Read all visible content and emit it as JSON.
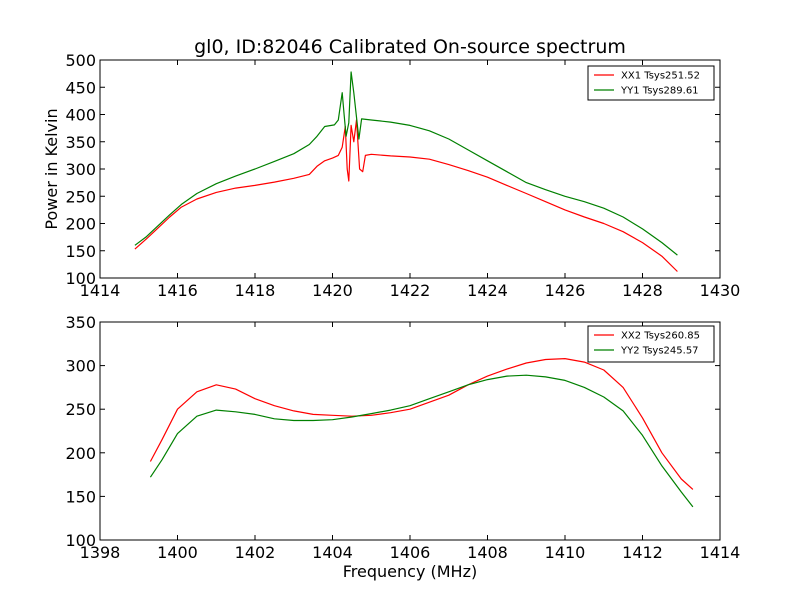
{
  "chart_data": [
    {
      "type": "line",
      "title": "gl0, ID:82046 Calibrated On-source spectrum",
      "xlabel": "",
      "ylabel": "Power in Kelvin",
      "xlim": [
        1414,
        1430
      ],
      "ylim": [
        100,
        500
      ],
      "xticks": [
        "1414",
        "1416",
        "1418",
        "1420",
        "1422",
        "1424",
        "1426",
        "1428",
        "1430"
      ],
      "yticks": [
        "100",
        "150",
        "200",
        "250",
        "300",
        "350",
        "400",
        "450",
        "500"
      ],
      "grid": false,
      "legend_position": "top-right",
      "series": [
        {
          "name": "XX1 Tsys251.52",
          "color": "#ff0000",
          "points": [
            [
              1414.9,
              153
            ],
            [
              1415.2,
              172
            ],
            [
              1415.5,
              192
            ],
            [
              1415.8,
              212
            ],
            [
              1416.1,
              230
            ],
            [
              1416.5,
              245
            ],
            [
              1417,
              257
            ],
            [
              1417.5,
              265
            ],
            [
              1418,
              270
            ],
            [
              1418.5,
              276
            ],
            [
              1419,
              283
            ],
            [
              1419.4,
              290
            ],
            [
              1419.6,
              305
            ],
            [
              1419.8,
              315
            ],
            [
              1420,
              320
            ],
            [
              1420.15,
              325
            ],
            [
              1420.25,
              340
            ],
            [
              1420.33,
              378
            ],
            [
              1420.38,
              300
            ],
            [
              1420.42,
              278
            ],
            [
              1420.48,
              380
            ],
            [
              1420.55,
              350
            ],
            [
              1420.62,
              390
            ],
            [
              1420.7,
              300
            ],
            [
              1420.78,
              295
            ],
            [
              1420.85,
              325
            ],
            [
              1421,
              327
            ],
            [
              1421.5,
              324
            ],
            [
              1422,
              322
            ],
            [
              1422.5,
              318
            ],
            [
              1423,
              308
            ],
            [
              1423.5,
              297
            ],
            [
              1424,
              285
            ],
            [
              1424.5,
              270
            ],
            [
              1425,
              255
            ],
            [
              1425.5,
              240
            ],
            [
              1426,
              225
            ],
            [
              1426.5,
              212
            ],
            [
              1427,
              200
            ],
            [
              1427.5,
              185
            ],
            [
              1428,
              165
            ],
            [
              1428.5,
              140
            ],
            [
              1428.9,
              112
            ]
          ]
        },
        {
          "name": "YY1 Tsys289.61",
          "color": "#008000",
          "points": [
            [
              1414.9,
              160
            ],
            [
              1415.2,
              176
            ],
            [
              1415.5,
              196
            ],
            [
              1415.8,
              216
            ],
            [
              1416.1,
              235
            ],
            [
              1416.5,
              255
            ],
            [
              1417,
              273
            ],
            [
              1417.5,
              287
            ],
            [
              1418,
              300
            ],
            [
              1418.5,
              314
            ],
            [
              1419,
              328
            ],
            [
              1419.4,
              345
            ],
            [
              1419.6,
              360
            ],
            [
              1419.8,
              378
            ],
            [
              1420.05,
              381
            ],
            [
              1420.15,
              390
            ],
            [
              1420.25,
              440
            ],
            [
              1420.3,
              400
            ],
            [
              1420.35,
              360
            ],
            [
              1420.42,
              385
            ],
            [
              1420.48,
              478
            ],
            [
              1420.55,
              440
            ],
            [
              1420.62,
              395
            ],
            [
              1420.68,
              355
            ],
            [
              1420.75,
              392
            ],
            [
              1421,
              390
            ],
            [
              1421.5,
              386
            ],
            [
              1422,
              380
            ],
            [
              1422.5,
              370
            ],
            [
              1423,
              355
            ],
            [
              1423.5,
              335
            ],
            [
              1424,
              315
            ],
            [
              1424.5,
              295
            ],
            [
              1425,
              275
            ],
            [
              1425.5,
              262
            ],
            [
              1426,
              250
            ],
            [
              1426.5,
              240
            ],
            [
              1427,
              228
            ],
            [
              1427.5,
              212
            ],
            [
              1428,
              190
            ],
            [
              1428.5,
              165
            ],
            [
              1428.9,
              142
            ]
          ]
        }
      ]
    },
    {
      "type": "line",
      "title": "",
      "xlabel": "Frequency (MHz)",
      "ylabel": "",
      "xlim": [
        1398,
        1414
      ],
      "ylim": [
        100,
        350
      ],
      "xticks": [
        "1398",
        "1400",
        "1402",
        "1404",
        "1406",
        "1408",
        "1410",
        "1412",
        "1414"
      ],
      "yticks": [
        "100",
        "150",
        "200",
        "250",
        "300",
        "350"
      ],
      "grid": false,
      "legend_position": "top-right",
      "series": [
        {
          "name": "XX2 Tsys260.85",
          "color": "#ff0000",
          "points": [
            [
              1399.3,
              190
            ],
            [
              1399.6,
              215
            ],
            [
              1400,
              250
            ],
            [
              1400.5,
              270
            ],
            [
              1401,
              278
            ],
            [
              1401.5,
              273
            ],
            [
              1402,
              262
            ],
            [
              1402.5,
              254
            ],
            [
              1403,
              248
            ],
            [
              1403.5,
              244
            ],
            [
              1404,
              243
            ],
            [
              1404.5,
              242
            ],
            [
              1405,
              243
            ],
            [
              1405.5,
              246
            ],
            [
              1406,
              250
            ],
            [
              1406.5,
              258
            ],
            [
              1407,
              266
            ],
            [
              1407.5,
              278
            ],
            [
              1408,
              288
            ],
            [
              1408.5,
              296
            ],
            [
              1409,
              303
            ],
            [
              1409.5,
              307
            ],
            [
              1410,
              308
            ],
            [
              1410.5,
              304
            ],
            [
              1411,
              295
            ],
            [
              1411.5,
              275
            ],
            [
              1412,
              240
            ],
            [
              1412.5,
              200
            ],
            [
              1413,
              170
            ],
            [
              1413.3,
              158
            ]
          ]
        },
        {
          "name": "YY2 Tsys245.57",
          "color": "#008000",
          "points": [
            [
              1399.3,
              172
            ],
            [
              1399.6,
              192
            ],
            [
              1400,
              222
            ],
            [
              1400.5,
              242
            ],
            [
              1401,
              249
            ],
            [
              1401.5,
              247
            ],
            [
              1402,
              244
            ],
            [
              1402.5,
              239
            ],
            [
              1403,
              237
            ],
            [
              1403.5,
              237
            ],
            [
              1404,
              238
            ],
            [
              1404.5,
              241
            ],
            [
              1405,
              245
            ],
            [
              1405.5,
              249
            ],
            [
              1406,
              254
            ],
            [
              1406.5,
              262
            ],
            [
              1407,
              270
            ],
            [
              1407.5,
              278
            ],
            [
              1408,
              284
            ],
            [
              1408.5,
              288
            ],
            [
              1409,
              289
            ],
            [
              1409.5,
              287
            ],
            [
              1410,
              283
            ],
            [
              1410.5,
              275
            ],
            [
              1411,
              264
            ],
            [
              1411.5,
              248
            ],
            [
              1412,
              220
            ],
            [
              1412.5,
              185
            ],
            [
              1413,
              155
            ],
            [
              1413.3,
              138
            ]
          ]
        }
      ]
    }
  ]
}
